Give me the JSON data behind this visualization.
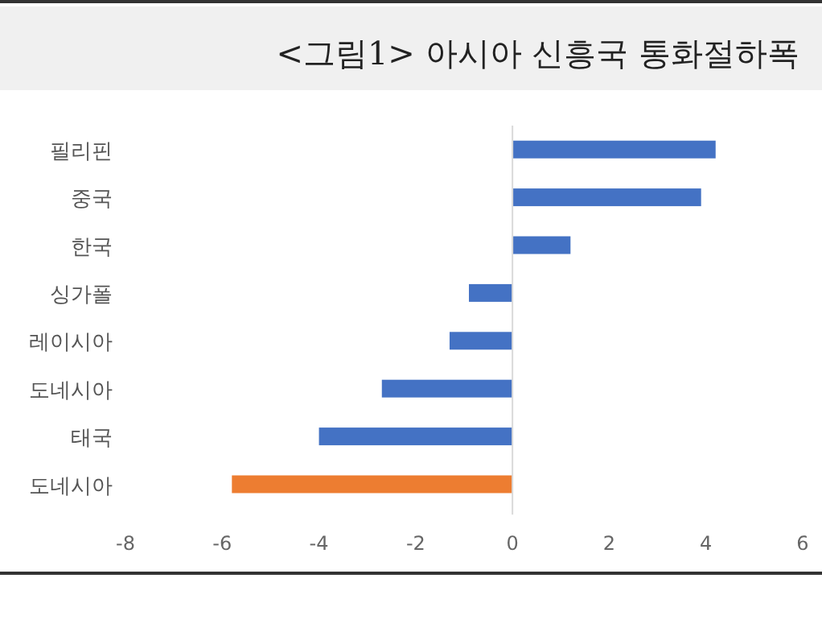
{
  "chart_data": {
    "type": "bar",
    "orientation": "horizontal",
    "title": "<그림1> 아시아 신흥국 통화절하폭",
    "categories": [
      "필리핀",
      "중국",
      "한국",
      "싱가폴",
      "레이시아",
      "도네시아",
      "태국",
      "도네시아"
    ],
    "values": [
      4.2,
      3.9,
      1.2,
      -0.9,
      -1.3,
      -2.7,
      -4.0,
      -5.8
    ],
    "colors": [
      "#4472c4",
      "#4472c4",
      "#4472c4",
      "#4472c4",
      "#4472c4",
      "#4472c4",
      "#4472c4",
      "#ed7d31"
    ],
    "xlim": [
      -8,
      6
    ],
    "xticks": [
      -8,
      -6,
      -4,
      -2,
      0,
      2,
      4,
      6
    ]
  }
}
